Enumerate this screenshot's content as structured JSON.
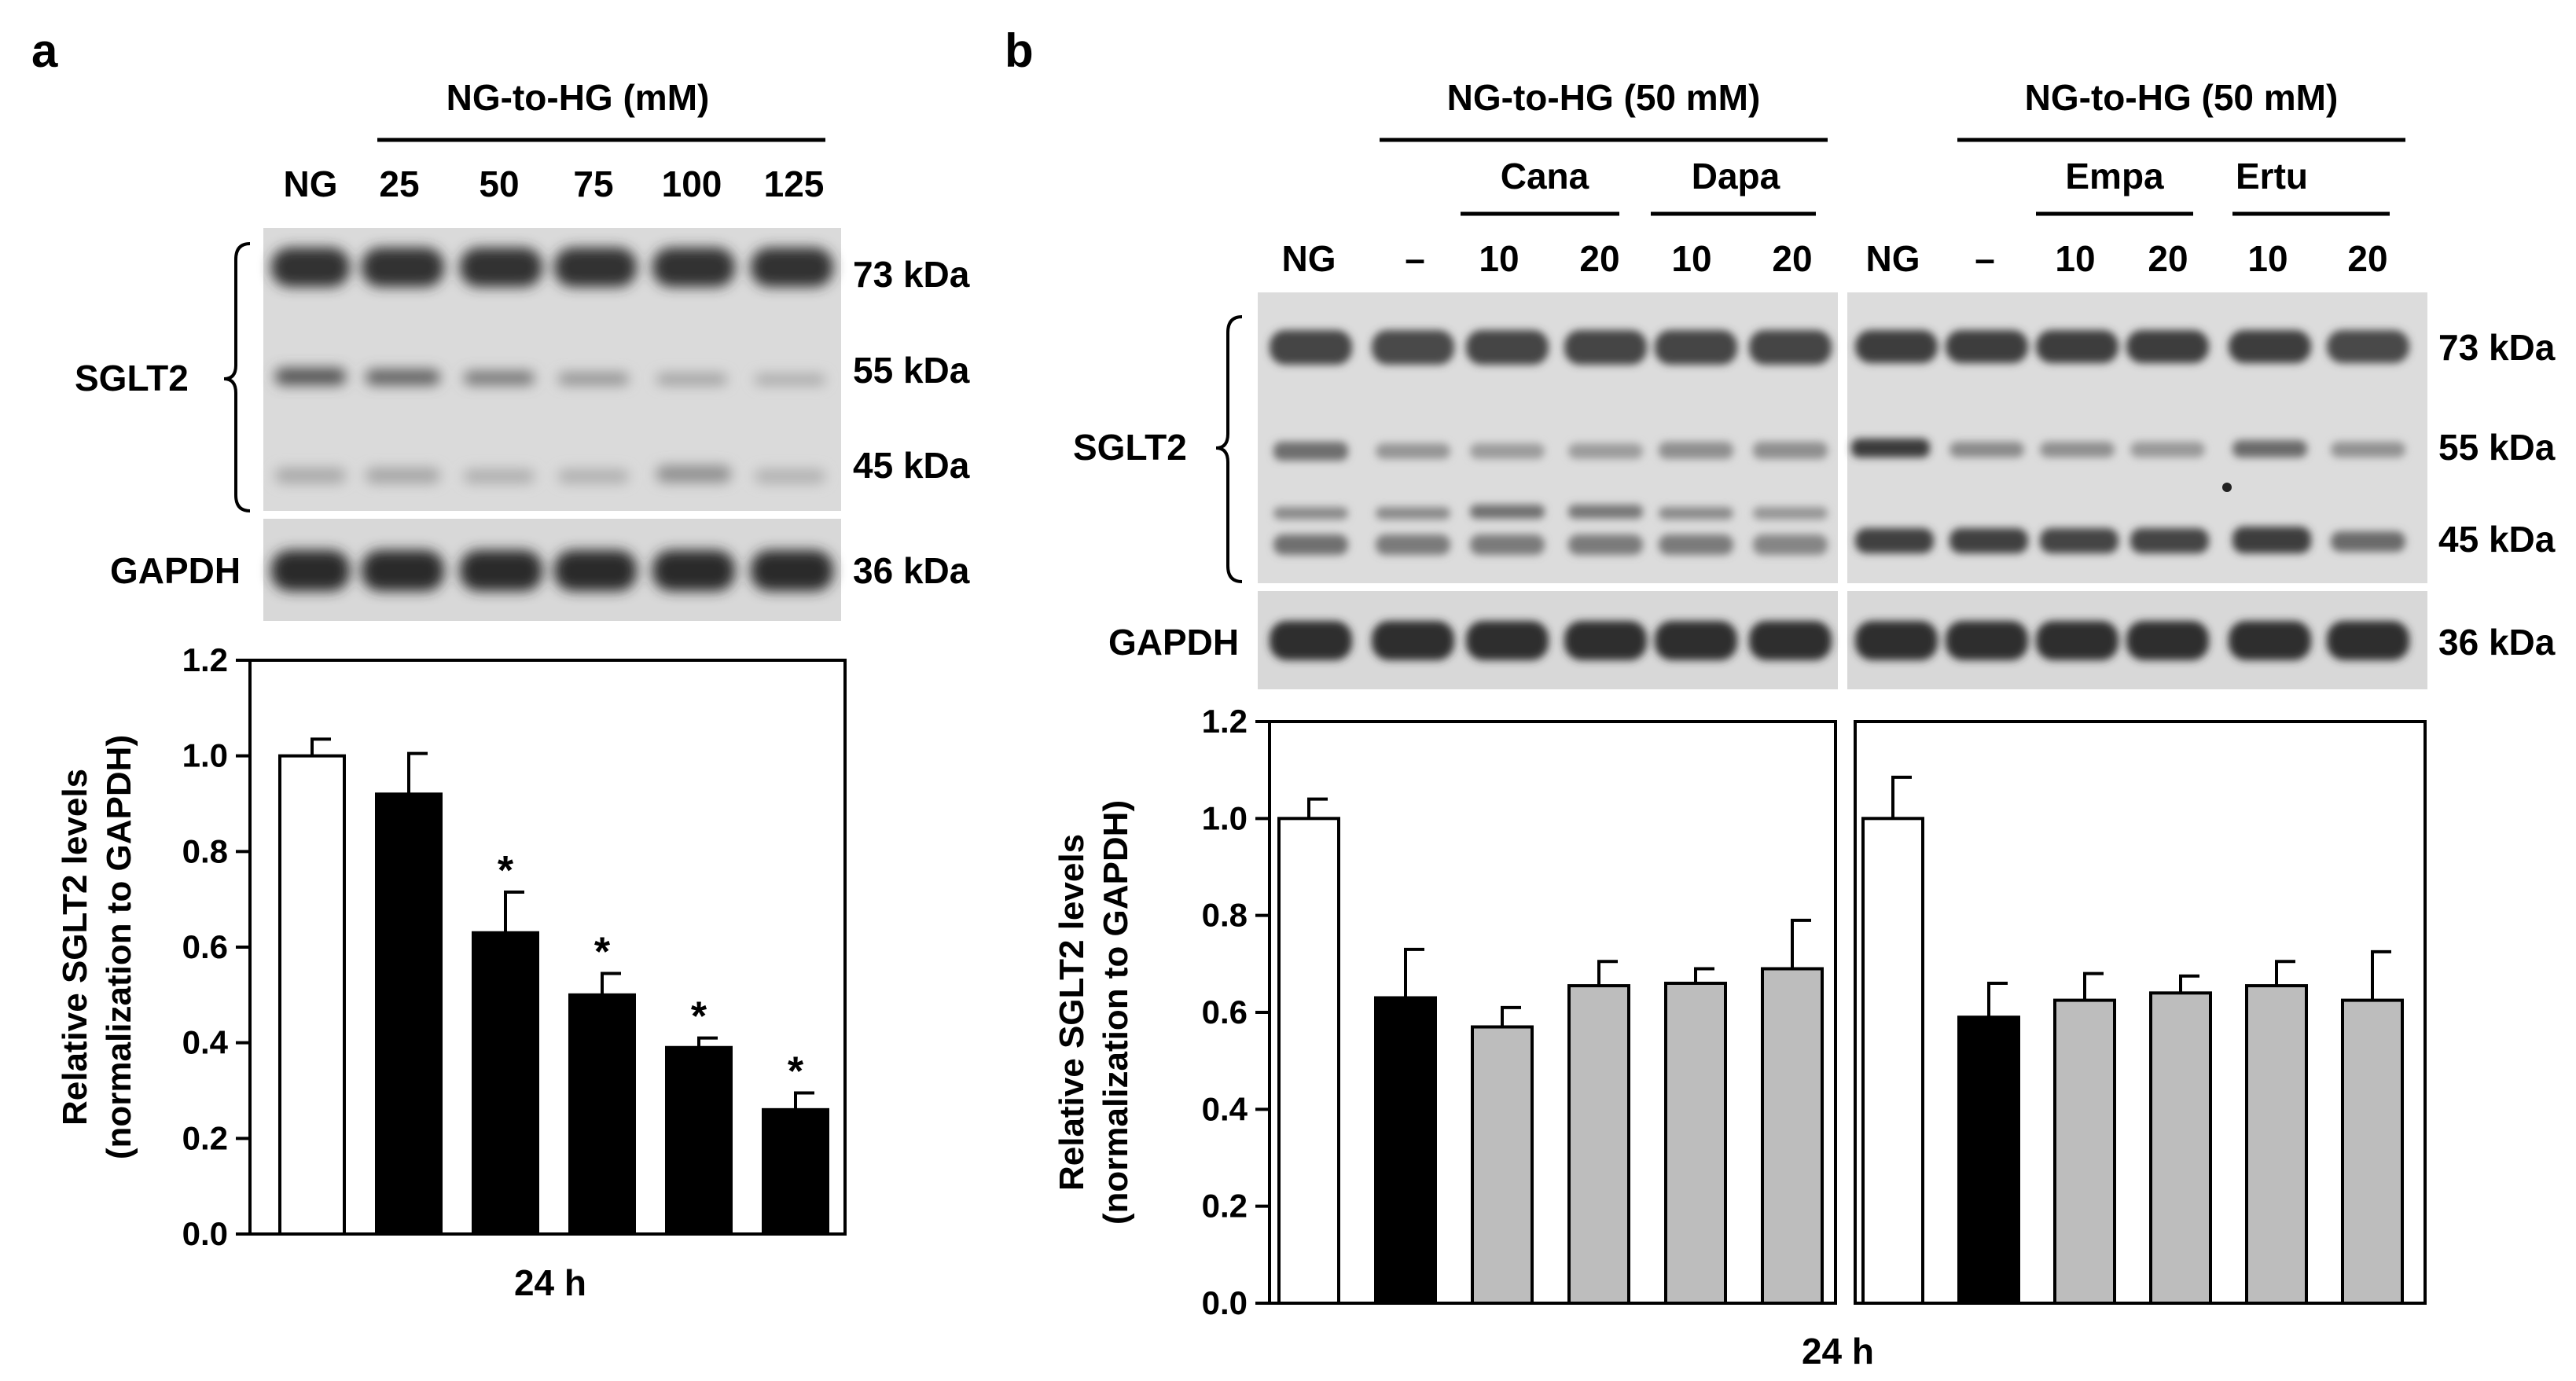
{
  "panel_a": {
    "letter": "a",
    "header": "NG-to-HG (mM)",
    "lanes": [
      "NG",
      "25",
      "50",
      "75",
      "100",
      "125"
    ],
    "protein_label": "SGLT2",
    "loading_label": "GAPDH",
    "kda": [
      "73 kDa",
      "55 kDa",
      "45 kDa",
      "36 kDa"
    ]
  },
  "panel_b": {
    "letter": "b",
    "blot_left": {
      "header": "NG-to-HG (50 mM)",
      "drug1": "Cana",
      "drug2": "Dapa",
      "lanes": [
        "NG",
        "–",
        "10",
        "20",
        "10",
        "20"
      ]
    },
    "blot_right": {
      "header": "NG-to-HG (50 mM)",
      "drug1": "Empa",
      "drug2": "Ertu",
      "lanes": [
        "NG",
        "–",
        "10",
        "20",
        "10",
        "20"
      ]
    },
    "protein_label": "SGLT2",
    "loading_label": "GAPDH",
    "kda": [
      "73 kDa",
      "55 kDa",
      "45 kDa",
      "36 kDa"
    ]
  },
  "colors": {
    "white_bar": "#ffffff",
    "black_bar": "#000000",
    "grey_bar": "#bdbdbd"
  },
  "chart_data": [
    {
      "type": "bar",
      "panel": "a",
      "xlabel": "24 h",
      "ylabel": "Relative SGLT2 levels",
      "ylabel2": "(normalization to GAPDH)",
      "ylim": [
        0,
        1.2
      ],
      "yticks": [
        "0.0",
        "0.2",
        "0.4",
        "0.6",
        "0.8",
        "1.0",
        "1.2"
      ],
      "categories": [
        "NG",
        "25",
        "50",
        "75",
        "100",
        "125"
      ],
      "values": [
        1.0,
        0.92,
        0.63,
        0.5,
        0.39,
        0.26
      ],
      "errors": [
        0.035,
        0.085,
        0.085,
        0.045,
        0.02,
        0.035
      ],
      "fills": [
        "white",
        "black",
        "black",
        "black",
        "black",
        "black"
      ],
      "significance": [
        "",
        "",
        "*",
        "*",
        "*",
        "*"
      ],
      "grid": false
    },
    {
      "type": "bar",
      "panel": "b",
      "xlabel": "24 h",
      "ylabel": "Relative SGLT2 levels",
      "ylabel2": "(normalization to GAPDH)",
      "ylim": [
        0,
        1.2
      ],
      "yticks": [
        "0.0",
        "0.2",
        "0.4",
        "0.6",
        "0.8",
        "1.0",
        "1.2"
      ],
      "groups": [
        {
          "categories": [
            "NG",
            "–",
            "Cana 10",
            "Cana 20",
            "Dapa 10",
            "Dapa 20"
          ],
          "values": [
            1.0,
            0.63,
            0.57,
            0.655,
            0.66,
            0.69
          ],
          "errors": [
            0.04,
            0.1,
            0.04,
            0.05,
            0.03,
            0.1
          ],
          "fills": [
            "white",
            "black",
            "grey",
            "grey",
            "grey",
            "grey"
          ]
        },
        {
          "categories": [
            "NG",
            "–",
            "Empa 10",
            "Empa 20",
            "Ertu 10",
            "Ertu 20"
          ],
          "values": [
            1.0,
            0.59,
            0.625,
            0.64,
            0.655,
            0.625
          ],
          "errors": [
            0.085,
            0.07,
            0.055,
            0.035,
            0.05,
            0.1
          ],
          "fills": [
            "white",
            "black",
            "grey",
            "grey",
            "grey",
            "grey"
          ]
        }
      ],
      "grid": false
    }
  ]
}
